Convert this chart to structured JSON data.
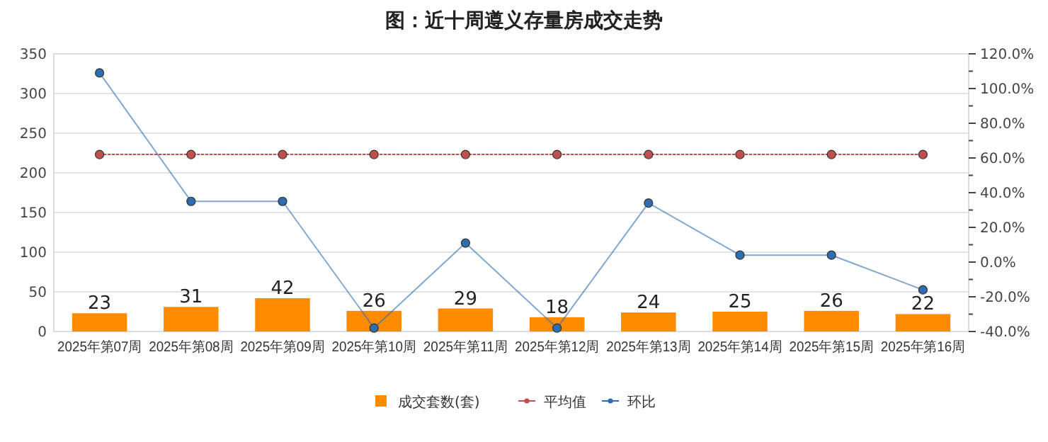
{
  "chart_data": {
    "type": "bar",
    "title": "图：近十周遵义存量房成交走势",
    "categories": [
      "2025年第07周",
      "2025年第08周",
      "2025年第09周",
      "2025年第10周",
      "2025年第11周",
      "2025年第12周",
      "2025年第13周",
      "2025年第14周",
      "2025年第15周",
      "2025年第16周"
    ],
    "series": [
      {
        "name": "成交套数(套)",
        "color": "#ff8c00",
        "values": [
          23,
          31,
          42,
          26,
          29,
          18,
          24,
          25,
          26,
          22
        ],
        "value_labels": [
          "23",
          "31",
          "42",
          "26",
          "29",
          "18",
          "24",
          "25",
          "26",
          "22"
        ]
      },
      {
        "name": "平均值",
        "type": "line",
        "axis": "y2",
        "color": "#c0504d",
        "line_style": "dotted",
        "marker": "circle",
        "values": [
          62,
          62,
          62,
          62,
          62,
          62,
          62,
          62,
          62,
          62
        ]
      },
      {
        "name": "环比",
        "type": "line",
        "axis": "y2",
        "color": "#2e6db0",
        "line_style": "solid",
        "marker": "circle",
        "values": [
          109,
          35,
          35,
          -38,
          11,
          -38,
          34,
          4,
          4,
          -16
        ]
      }
    ],
    "ylim": [
      0,
      350
    ],
    "yticks": [
      0,
      50,
      100,
      150,
      200,
      250,
      300,
      350
    ],
    "y2lim": [
      -40,
      120
    ],
    "y2ticks": [
      {
        "value": -40,
        "label": "-40.0%"
      },
      {
        "value": -30,
        "label": null
      },
      {
        "value": -20,
        "label": "-20.0%"
      },
      {
        "value": -10,
        "label": null
      },
      {
        "value": 0,
        "label": "0.0%"
      },
      {
        "value": 10,
        "label": null
      },
      {
        "value": 20,
        "label": "20.0%"
      },
      {
        "value": 30,
        "label": null
      },
      {
        "value": 40,
        "label": "40.0%"
      },
      {
        "value": 50,
        "label": null
      },
      {
        "value": 60,
        "label": "60.0%"
      },
      {
        "value": 70,
        "label": null
      },
      {
        "value": 80,
        "label": "80.0%"
      },
      {
        "value": 90,
        "label": null
      },
      {
        "value": 100,
        "label": "100.0%"
      },
      {
        "value": 110,
        "label": null
      },
      {
        "value": 120,
        "label": "120.0%"
      }
    ],
    "grid": "y",
    "legend": "bottom"
  }
}
